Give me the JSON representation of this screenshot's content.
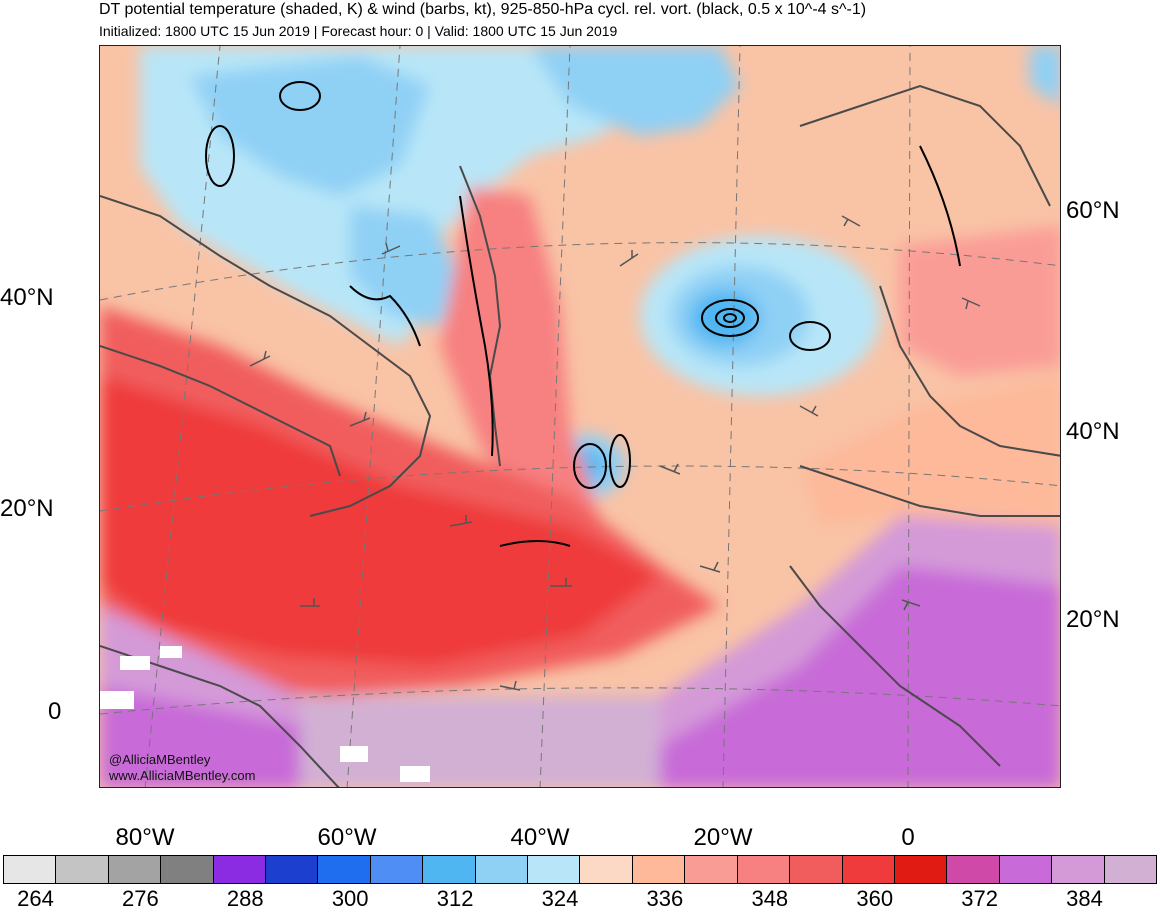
{
  "header": {
    "title": "DT potential temperature (shaded, K) & wind (barbs, kt), 925-850-hPa cycl. rel. vort. (black, 0.5 x 10^-4 s^-1)",
    "subtitle": "Initialized: 1800 UTC 15 Jun 2019 | Forecast hour: 0 | Valid: 1800 UTC 15 Jun 2019"
  },
  "map": {
    "lat_labels_left": [
      "40°N",
      "20°N",
      "0"
    ],
    "lat_labels_right": [
      "60°N",
      "40°N",
      "20°N"
    ],
    "lon_labels": [
      "80°W",
      "60°W",
      "40°W",
      "20°W",
      "0"
    ],
    "credit_handle": "@AlliciaMBentley",
    "credit_url": "www.AlliciaMBentley.com",
    "features": [
      "cyclone-center-north-atlantic",
      "cutoff-low-mid-atlantic",
      "warm-tongue",
      "tropical-moist-band"
    ]
  },
  "colorbar": {
    "colors": [
      "#e6e6e6",
      "#c4c4c4",
      "#a3a3a3",
      "#808080",
      "#8b2be2",
      "#1c3fcf",
      "#1f6ef0",
      "#4f8ff5",
      "#4fb6f2",
      "#8fd0f5",
      "#b8e6f8",
      "#fbd9c4",
      "#fdb99a",
      "#fa9c96",
      "#f78080",
      "#f15d5d",
      "#ef3b3b",
      "#df1b13",
      "#cf4aa8",
      "#c86ad8",
      "#d49ad8",
      "#d2b0d4"
    ],
    "tick_labels": [
      "264",
      "276",
      "288",
      "300",
      "312",
      "324",
      "336",
      "348",
      "360",
      "372",
      "384"
    ]
  }
}
